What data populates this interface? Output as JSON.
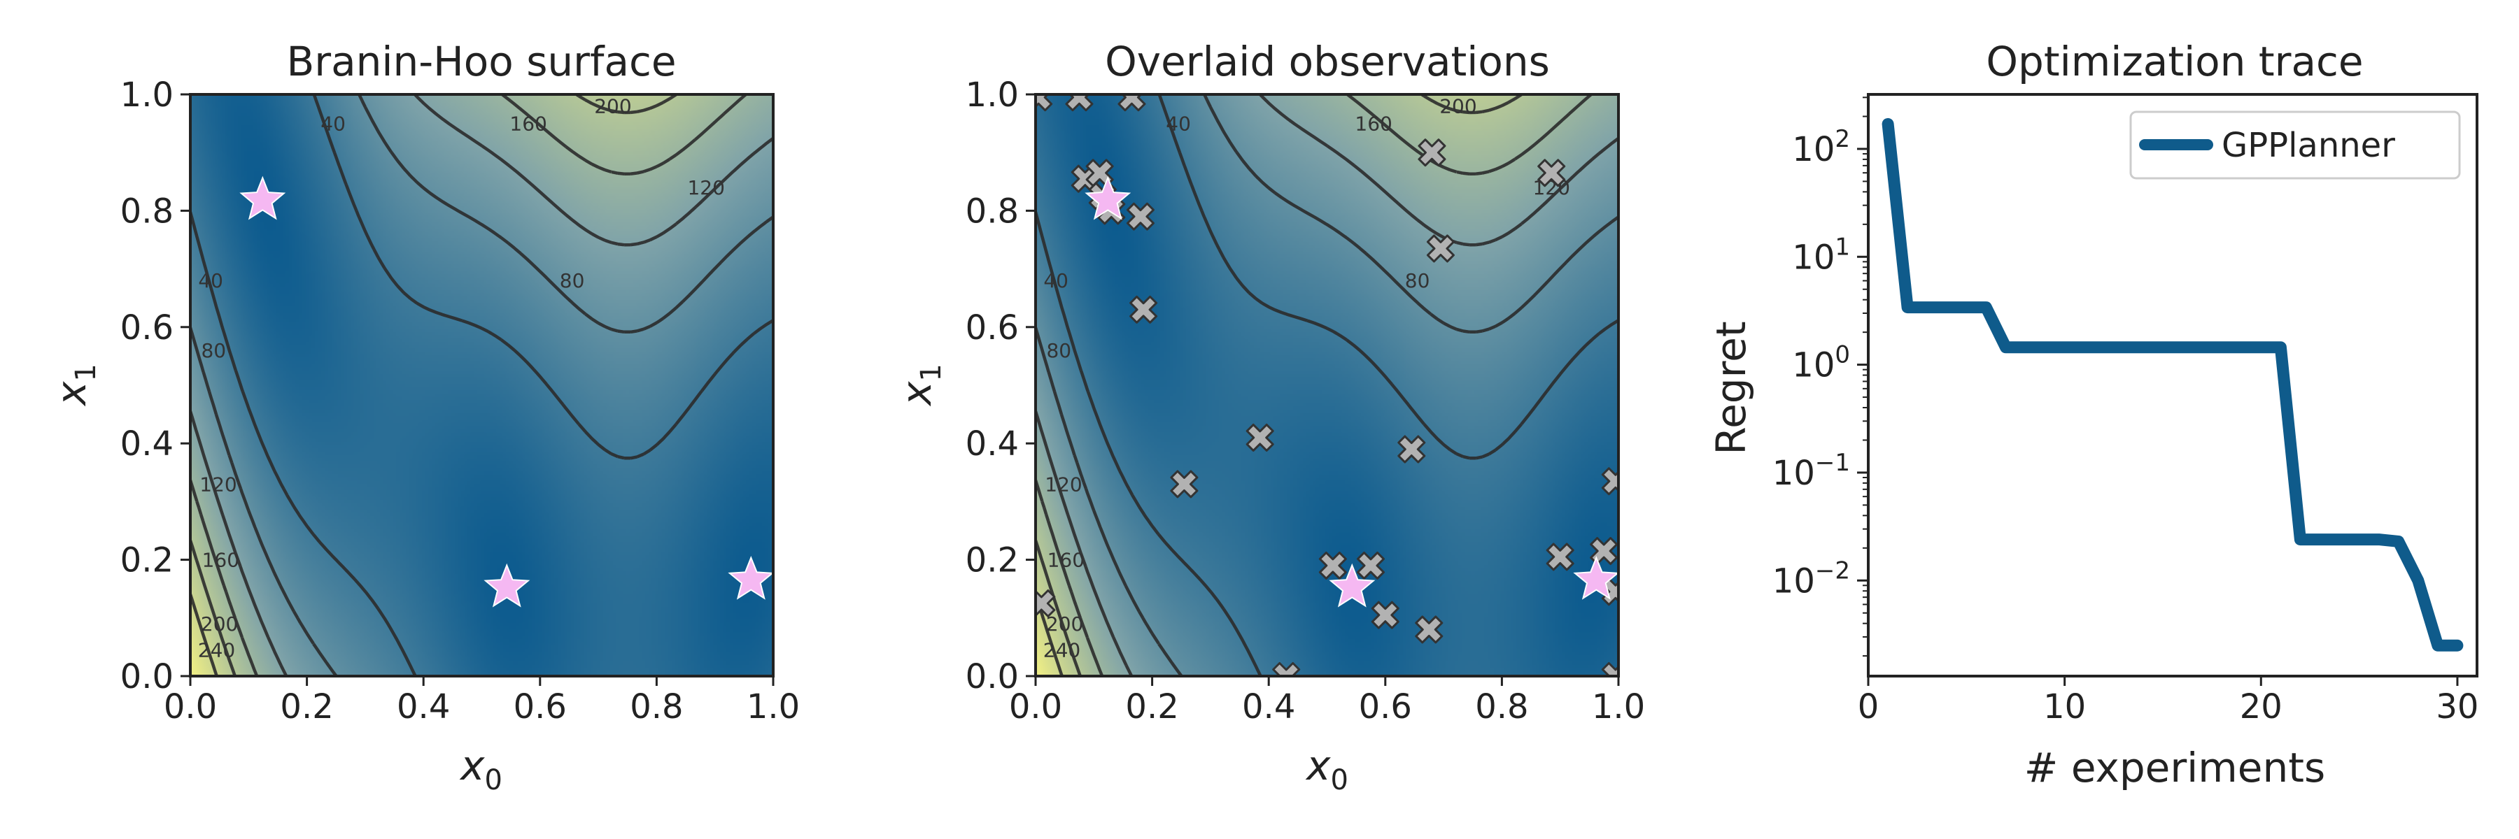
{
  "figure": {
    "colors": {
      "surface_low": "#0b5a8e",
      "surface_mid": "#7fa3a9",
      "surface_high": "#ecec86",
      "contour": "#2b2b2b",
      "star": "#f5b8f2",
      "observation_fill": "#b2b2b2",
      "observation_edge": "#333333",
      "trace": "#0f5b8b"
    }
  },
  "chart_data": [
    {
      "type": "heatmap",
      "title": "Branin-Hoo surface",
      "xlabel_base": "x",
      "xlabel_sub": "0",
      "ylabel_base": "x",
      "ylabel_sub": "1",
      "xlim": [
        0.0,
        1.0
      ],
      "ylim": [
        0.0,
        1.0
      ],
      "xticks": [
        "0.0",
        "0.2",
        "0.4",
        "0.6",
        "0.8",
        "1.0"
      ],
      "yticks": [
        "0.0",
        "0.2",
        "0.4",
        "0.6",
        "0.8",
        "1.0"
      ],
      "contour_levels": [
        "40",
        "80",
        "120",
        "160",
        "200",
        "240"
      ],
      "minima": [
        {
          "x": 0.124,
          "y": 0.818
        },
        {
          "x": 0.543,
          "y": 0.152
        },
        {
          "x": 0.962,
          "y": 0.165
        }
      ]
    },
    {
      "type": "scatter",
      "title": "Overlaid observations",
      "xlabel_base": "x",
      "xlabel_sub": "0",
      "ylabel_base": "x",
      "ylabel_sub": "1",
      "xlim": [
        0.0,
        1.0
      ],
      "ylim": [
        0.0,
        1.0
      ],
      "xticks": [
        "0.0",
        "0.2",
        "0.4",
        "0.6",
        "0.8",
        "1.0"
      ],
      "yticks": [
        "0.0",
        "0.2",
        "0.4",
        "0.6",
        "0.8",
        "1.0"
      ],
      "contour_levels": [
        "40",
        "80",
        "120",
        "160",
        "200",
        "240"
      ],
      "minima": [
        {
          "x": 0.124,
          "y": 0.818
        },
        {
          "x": 0.543,
          "y": 0.152
        },
        {
          "x": 0.962,
          "y": 0.165
        }
      ],
      "observations": [
        {
          "x": 0.005,
          "y": 0.995
        },
        {
          "x": 0.075,
          "y": 0.995
        },
        {
          "x": 0.165,
          "y": 0.995
        },
        {
          "x": 0.085,
          "y": 0.855
        },
        {
          "x": 0.11,
          "y": 0.865
        },
        {
          "x": 0.115,
          "y": 0.825
        },
        {
          "x": 0.13,
          "y": 0.8
        },
        {
          "x": 0.18,
          "y": 0.79
        },
        {
          "x": 0.185,
          "y": 0.63
        },
        {
          "x": 0.385,
          "y": 0.41
        },
        {
          "x": 0.255,
          "y": 0.33
        },
        {
          "x": 0.645,
          "y": 0.39
        },
        {
          "x": 0.68,
          "y": 0.9
        },
        {
          "x": 0.695,
          "y": 0.735
        },
        {
          "x": 0.885,
          "y": 0.865
        },
        {
          "x": 0.51,
          "y": 0.19
        },
        {
          "x": 0.575,
          "y": 0.19
        },
        {
          "x": 0.6,
          "y": 0.105
        },
        {
          "x": 0.675,
          "y": 0.08
        },
        {
          "x": 0.43,
          "y": 0.0
        },
        {
          "x": 0.9,
          "y": 0.205
        },
        {
          "x": 0.975,
          "y": 0.215
        },
        {
          "x": 0.995,
          "y": 0.335
        },
        {
          "x": 0.995,
          "y": 0.145
        },
        {
          "x": 0.995,
          "y": 0.0
        },
        {
          "x": 0.01,
          "y": 0.125
        }
      ]
    },
    {
      "type": "line",
      "title": "Optimization trace",
      "xlabel": "# experiments",
      "ylabel": "Regret",
      "xlim": [
        0,
        31
      ],
      "ylim": [
        0.0013,
        320
      ],
      "yscale": "log",
      "xticks": [
        0,
        10,
        20,
        30
      ],
      "yticks": [
        {
          "value": 0.01,
          "base": "10",
          "exp": "−2"
        },
        {
          "value": 0.1,
          "base": "10",
          "exp": "−1"
        },
        {
          "value": 1,
          "base": "10",
          "exp": "0"
        },
        {
          "value": 10,
          "base": "10",
          "exp": "1"
        },
        {
          "value": 100,
          "base": "10",
          "exp": "2"
        }
      ],
      "legend_position": "top-right",
      "series": [
        {
          "name": "GPPlanner",
          "x": [
            1,
            2,
            3,
            4,
            5,
            6,
            7,
            8,
            9,
            10,
            11,
            12,
            13,
            14,
            15,
            16,
            17,
            18,
            19,
            20,
            21,
            22,
            23,
            24,
            25,
            26,
            27,
            28,
            29,
            30
          ],
          "y": [
            170,
            3.4,
            3.4,
            3.4,
            3.4,
            3.4,
            1.45,
            1.45,
            1.45,
            1.45,
            1.45,
            1.45,
            1.45,
            1.45,
            1.45,
            1.45,
            1.45,
            1.45,
            1.45,
            1.45,
            1.45,
            0.024,
            0.024,
            0.024,
            0.024,
            0.024,
            0.023,
            0.01,
            0.0025,
            0.0025
          ]
        }
      ]
    }
  ]
}
